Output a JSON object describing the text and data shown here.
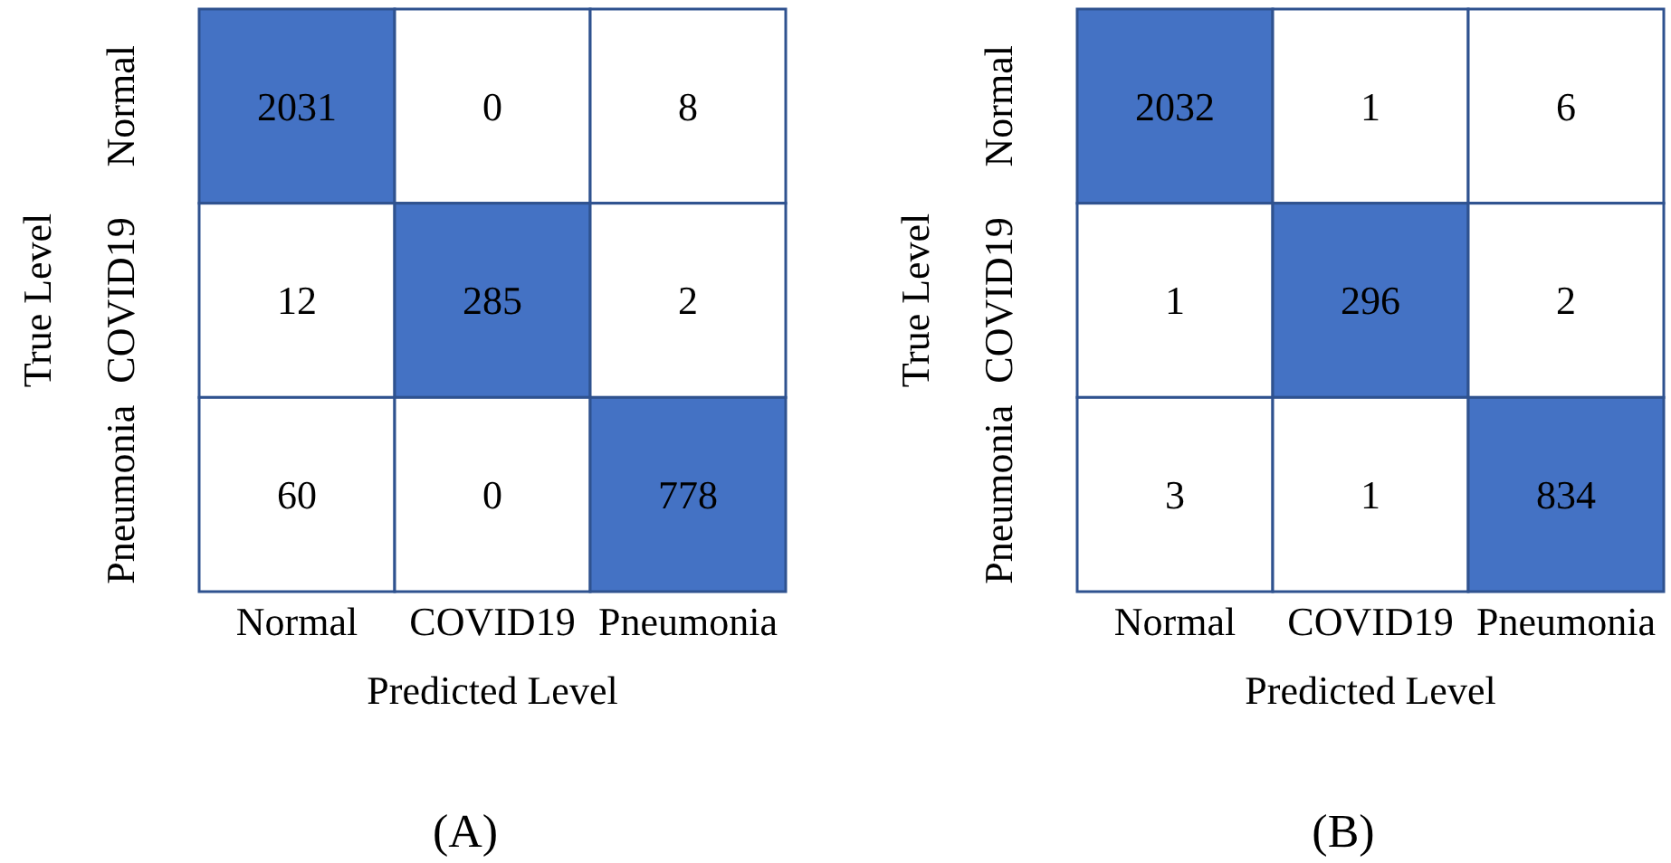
{
  "chart_data": [
    {
      "type": "heatmap",
      "xlabel": "Predicted Level",
      "ylabel": "True Level",
      "categories": [
        "Normal",
        "COVID19",
        "Pneumonia"
      ],
      "y_categories": [
        "Normal",
        "COVID19",
        "Pneumonia"
      ],
      "cells": [
        [
          2031,
          0,
          8
        ],
        [
          12,
          285,
          2
        ],
        [
          60,
          0,
          778
        ]
      ],
      "color": "#4472c4",
      "data_labels": true,
      "annotations": [
        "(A)"
      ]
    },
    {
      "type": "heatmap",
      "xlabel": "Predicted Level",
      "ylabel": "True Level",
      "categories": [
        "Normal",
        "COVID19",
        "Pneumonia"
      ],
      "y_categories": [
        "Normal",
        "COVID19",
        "Pneumonia"
      ],
      "cells": [
        [
          2032,
          1,
          6
        ],
        [
          1,
          296,
          2
        ],
        [
          3,
          1,
          834
        ]
      ],
      "color": "#4472c4",
      "data_labels": true,
      "annotations": [
        "(B)"
      ]
    }
  ]
}
